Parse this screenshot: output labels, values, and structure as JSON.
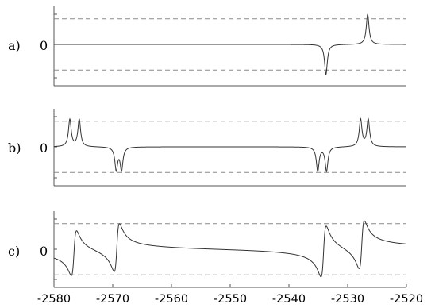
{
  "chart_data": [
    {
      "type": "line",
      "panel_label": "a)",
      "y_tick_label": "0",
      "xlim": [
        -2580,
        -2520
      ],
      "ylim": [
        -1,
        1
      ],
      "dashed_levels": [
        0.85,
        -0.85
      ],
      "peaks": [
        {
          "x": -2533.7,
          "amp": -1.0,
          "width": 0.28
        },
        {
          "x": -2526.6,
          "amp": 1.0,
          "width": 0.28
        }
      ]
    },
    {
      "type": "line",
      "panel_label": "b)",
      "y_tick_label": "0",
      "xlim": [
        -2580,
        -2520
      ],
      "ylim": [
        -1,
        1
      ],
      "dashed_levels": [
        0.85,
        -0.85
      ],
      "peaks": [
        {
          "x": -2577.3,
          "amp": 0.9,
          "width": 0.28
        },
        {
          "x": -2575.7,
          "amp": 0.9,
          "width": 0.28
        },
        {
          "x": -2569.4,
          "amp": -0.75,
          "width": 0.28
        },
        {
          "x": -2568.5,
          "amp": -0.75,
          "width": 0.28
        },
        {
          "x": -2535.1,
          "amp": -0.8,
          "width": 0.28
        },
        {
          "x": -2533.6,
          "amp": -0.8,
          "width": 0.28
        },
        {
          "x": -2527.8,
          "amp": 0.9,
          "width": 0.28
        },
        {
          "x": -2526.5,
          "amp": 0.9,
          "width": 0.28
        }
      ]
    },
    {
      "type": "line",
      "panel_label": "c)",
      "y_tick_label": "0",
      "xlim": [
        -2580,
        -2520
      ],
      "ylim": [
        -1,
        1
      ],
      "dashed_levels": [
        0.85,
        -0.85
      ],
      "peaks": [
        {
          "x": -2576.6,
          "amp": 0.75,
          "width": 0.45
        },
        {
          "x": -2569.3,
          "amp": 0.8,
          "width": 0.45
        },
        {
          "x": -2534.1,
          "amp": 0.85,
          "width": 0.45
        },
        {
          "x": -2527.6,
          "amp": 0.8,
          "width": 0.45
        }
      ]
    }
  ],
  "x_axis": {
    "ticks": [
      -2580,
      -2570,
      -2560,
      -2550,
      -2540,
      -2530,
      -2520
    ],
    "tick_labels": [
      "-2580",
      "-2570",
      "-2560",
      "-2550",
      "-2540",
      "-2530",
      "-2520"
    ]
  }
}
